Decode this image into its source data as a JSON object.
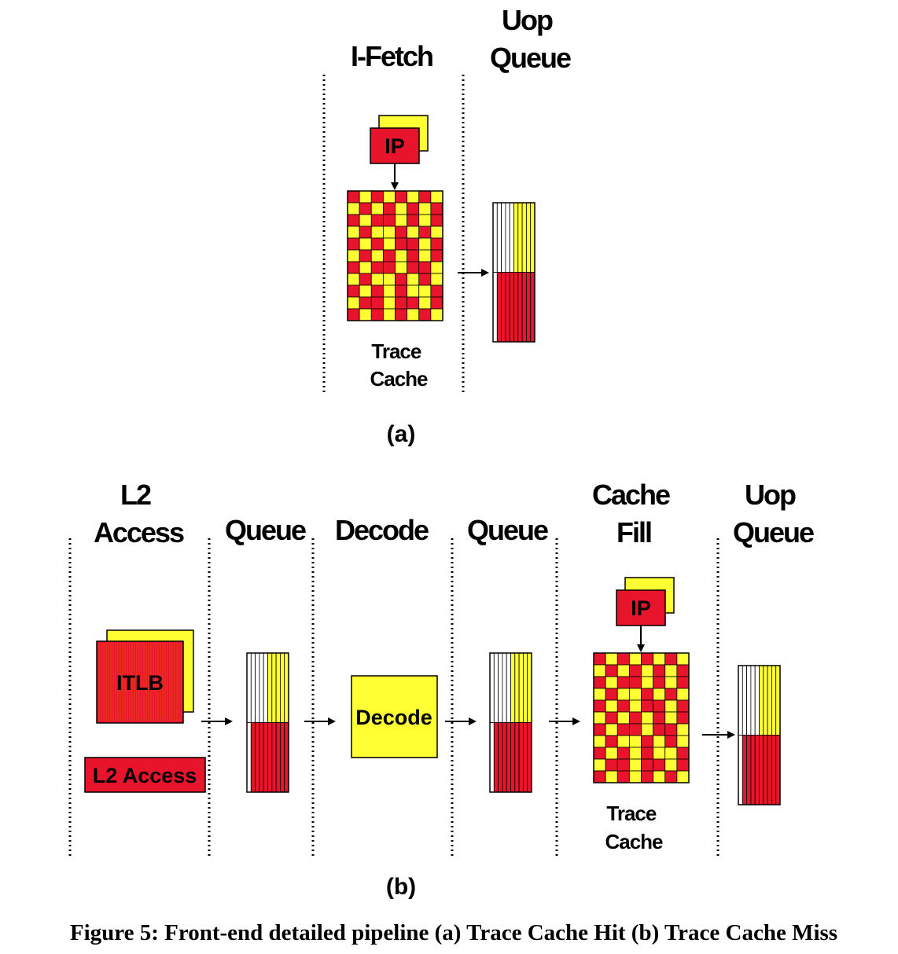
{
  "colors": {
    "red": "#e8142c",
    "yellow": "#ffff33",
    "black": "#000000",
    "white": "#ffffff"
  },
  "panel_a": {
    "headers": [
      "I-Fetch",
      "Uop\nQueue"
    ],
    "ip_label": "IP",
    "trace_cache_label": [
      "Trace",
      "Cache"
    ],
    "sublabel": "(a)"
  },
  "panel_b": {
    "headers": [
      "L2\nAccess",
      "Queue",
      "Decode",
      "Queue",
      "Cache\nFill",
      "Uop\nQueue"
    ],
    "itlb_label": "ITLB",
    "l2_access_label": "L2 Access",
    "decode_box_label": "Decode",
    "ip_label": "IP",
    "trace_cache_label": [
      "Trace",
      "Cache"
    ],
    "sublabel": "(b)"
  },
  "caption": "Figure 5: Front-end detailed pipeline (a) Trace Cache Hit (b) Trace Cache Miss",
  "icons": [
    "arrow-right-icon",
    "arrow-down-icon",
    "dotted-divider"
  ]
}
